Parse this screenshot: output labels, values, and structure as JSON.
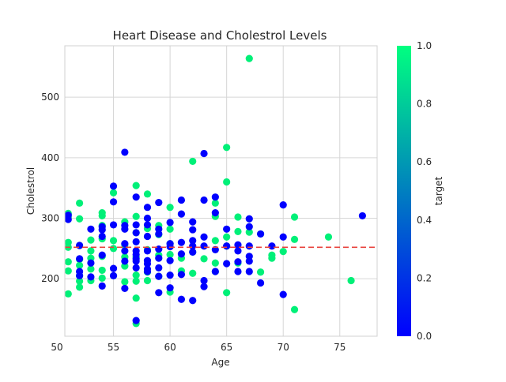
{
  "chart_data": {
    "type": "scatter",
    "title": "Heart Disease and Cholestrol Levels",
    "xlabel": "Age",
    "ylabel": "Cholestrol",
    "xlim": [
      50.7,
      78.3
    ],
    "ylim": [
      105,
      585
    ],
    "x_ticks": [
      50,
      55,
      60,
      65,
      70,
      75
    ],
    "y_ticks": [
      200,
      300,
      400,
      500
    ],
    "grid": true,
    "reference_line": {
      "y": 252,
      "style": "dashed",
      "color": "#e8423b"
    },
    "colorbar": {
      "label": "target",
      "range": [
        0.0,
        1.0
      ],
      "ticks": [
        "0.0",
        "0.2",
        "0.4",
        "0.6",
        "0.8",
        "1.0"
      ],
      "color_low": "#0000ff",
      "color_high": "#00ff80"
    },
    "series": [
      {
        "target": 1,
        "color": "#00f078",
        "points": [
          [
            51,
            308
          ],
          [
            51,
            302
          ],
          [
            51,
            260
          ],
          [
            51,
            252
          ],
          [
            51,
            228
          ],
          [
            51,
            213
          ],
          [
            51,
            175
          ],
          [
            52,
            325
          ],
          [
            52,
            299
          ],
          [
            52,
            255
          ],
          [
            52,
            232
          ],
          [
            52,
            222
          ],
          [
            52,
            205
          ],
          [
            52,
            196
          ],
          [
            52,
            186
          ],
          [
            53,
            264
          ],
          [
            53,
            246
          ],
          [
            53,
            234
          ],
          [
            53,
            216
          ],
          [
            53,
            197
          ],
          [
            54,
            309
          ],
          [
            54,
            304
          ],
          [
            54,
            288
          ],
          [
            54,
            266
          ],
          [
            54,
            237
          ],
          [
            54,
            214
          ],
          [
            54,
            201
          ],
          [
            55,
            342
          ],
          [
            55,
            263
          ],
          [
            55,
            250
          ],
          [
            55,
            205
          ],
          [
            56,
            294
          ],
          [
            56,
            256
          ],
          [
            56,
            236
          ],
          [
            56,
            221
          ],
          [
            56,
            195
          ],
          [
            57,
            354
          ],
          [
            57,
            303
          ],
          [
            57,
            276
          ],
          [
            57,
            236
          ],
          [
            57,
            206
          ],
          [
            57,
            196
          ],
          [
            57,
            168
          ],
          [
            57,
            126
          ],
          [
            58,
            340
          ],
          [
            58,
            283
          ],
          [
            58,
            248
          ],
          [
            58,
            211
          ],
          [
            58,
            197
          ],
          [
            59,
            288
          ],
          [
            59,
            273
          ],
          [
            59,
            239
          ],
          [
            59,
            204
          ],
          [
            60,
            318
          ],
          [
            60,
            282
          ],
          [
            60,
            258
          ],
          [
            60,
            240
          ],
          [
            60,
            178
          ],
          [
            61,
            234
          ],
          [
            61,
            213
          ],
          [
            62,
            394
          ],
          [
            62,
            244
          ],
          [
            62,
            209
          ],
          [
            63,
            233
          ],
          [
            64,
            325
          ],
          [
            64,
            303
          ],
          [
            64,
            263
          ],
          [
            64,
            226
          ],
          [
            64,
            212
          ],
          [
            65,
            417
          ],
          [
            65,
            360
          ],
          [
            65,
            269
          ],
          [
            65,
            254
          ],
          [
            65,
            177
          ],
          [
            66,
            302
          ],
          [
            66,
            278
          ],
          [
            66,
            226
          ],
          [
            67,
            564
          ],
          [
            67,
            277
          ],
          [
            68,
            274
          ],
          [
            68,
            211
          ],
          [
            69,
            239
          ],
          [
            69,
            234
          ],
          [
            70,
            245
          ],
          [
            71,
            302
          ],
          [
            71,
            265
          ],
          [
            71,
            149
          ],
          [
            74,
            269
          ],
          [
            76,
            197
          ]
        ]
      },
      {
        "target": 0,
        "color": "#0000ff",
        "points": [
          [
            51,
            305
          ],
          [
            51,
            298
          ],
          [
            52,
            255
          ],
          [
            52,
            233
          ],
          [
            52,
            212
          ],
          [
            52,
            205
          ],
          [
            53,
            282
          ],
          [
            53,
            226
          ],
          [
            53,
            203
          ],
          [
            54,
            286
          ],
          [
            54,
            281
          ],
          [
            54,
            270
          ],
          [
            54,
            239
          ],
          [
            54,
            188
          ],
          [
            55,
            353
          ],
          [
            55,
            327
          ],
          [
            55,
            289
          ],
          [
            55,
            217
          ],
          [
            55,
            205
          ],
          [
            56,
            409
          ],
          [
            56,
            288
          ],
          [
            56,
            282
          ],
          [
            56,
            258
          ],
          [
            56,
            246
          ],
          [
            56,
            229
          ],
          [
            56,
            184
          ],
          [
            57,
            335
          ],
          [
            57,
            289
          ],
          [
            57,
            276
          ],
          [
            57,
            261
          ],
          [
            57,
            246
          ],
          [
            57,
            240
          ],
          [
            57,
            233
          ],
          [
            57,
            229
          ],
          [
            57,
            218
          ],
          [
            57,
            131
          ],
          [
            58,
            318
          ],
          [
            58,
            300
          ],
          [
            58,
            289
          ],
          [
            58,
            270
          ],
          [
            58,
            246
          ],
          [
            58,
            230
          ],
          [
            58,
            225
          ],
          [
            58,
            216
          ],
          [
            58,
            212
          ],
          [
            59,
            326
          ],
          [
            59,
            282
          ],
          [
            59,
            274
          ],
          [
            59,
            249
          ],
          [
            59,
            234
          ],
          [
            59,
            218
          ],
          [
            59,
            204
          ],
          [
            59,
            177
          ],
          [
            60,
            293
          ],
          [
            60,
            258
          ],
          [
            60,
            253
          ],
          [
            60,
            230
          ],
          [
            60,
            206
          ],
          [
            60,
            185
          ],
          [
            61,
            330
          ],
          [
            61,
            307
          ],
          [
            61,
            260
          ],
          [
            61,
            241
          ],
          [
            61,
            207
          ],
          [
            61,
            166
          ],
          [
            62,
            294
          ],
          [
            62,
            281
          ],
          [
            62,
            263
          ],
          [
            62,
            254
          ],
          [
            62,
            244
          ],
          [
            62,
            164
          ],
          [
            63,
            407
          ],
          [
            63,
            330
          ],
          [
            63,
            269
          ],
          [
            63,
            254
          ],
          [
            63,
            197
          ],
          [
            63,
            187
          ],
          [
            64,
            335
          ],
          [
            64,
            309
          ],
          [
            64,
            248
          ],
          [
            64,
            212
          ],
          [
            65,
            282
          ],
          [
            65,
            254
          ],
          [
            65,
            225
          ],
          [
            66,
            256
          ],
          [
            66,
            246
          ],
          [
            66,
            228
          ],
          [
            66,
            212
          ],
          [
            67,
            299
          ],
          [
            67,
            286
          ],
          [
            67,
            254
          ],
          [
            67,
            237
          ],
          [
            67,
            229
          ],
          [
            67,
            212
          ],
          [
            68,
            274
          ],
          [
            68,
            193
          ],
          [
            69,
            254
          ],
          [
            70,
            322
          ],
          [
            70,
            269
          ],
          [
            70,
            174
          ],
          [
            77,
            304
          ]
        ]
      }
    ]
  }
}
